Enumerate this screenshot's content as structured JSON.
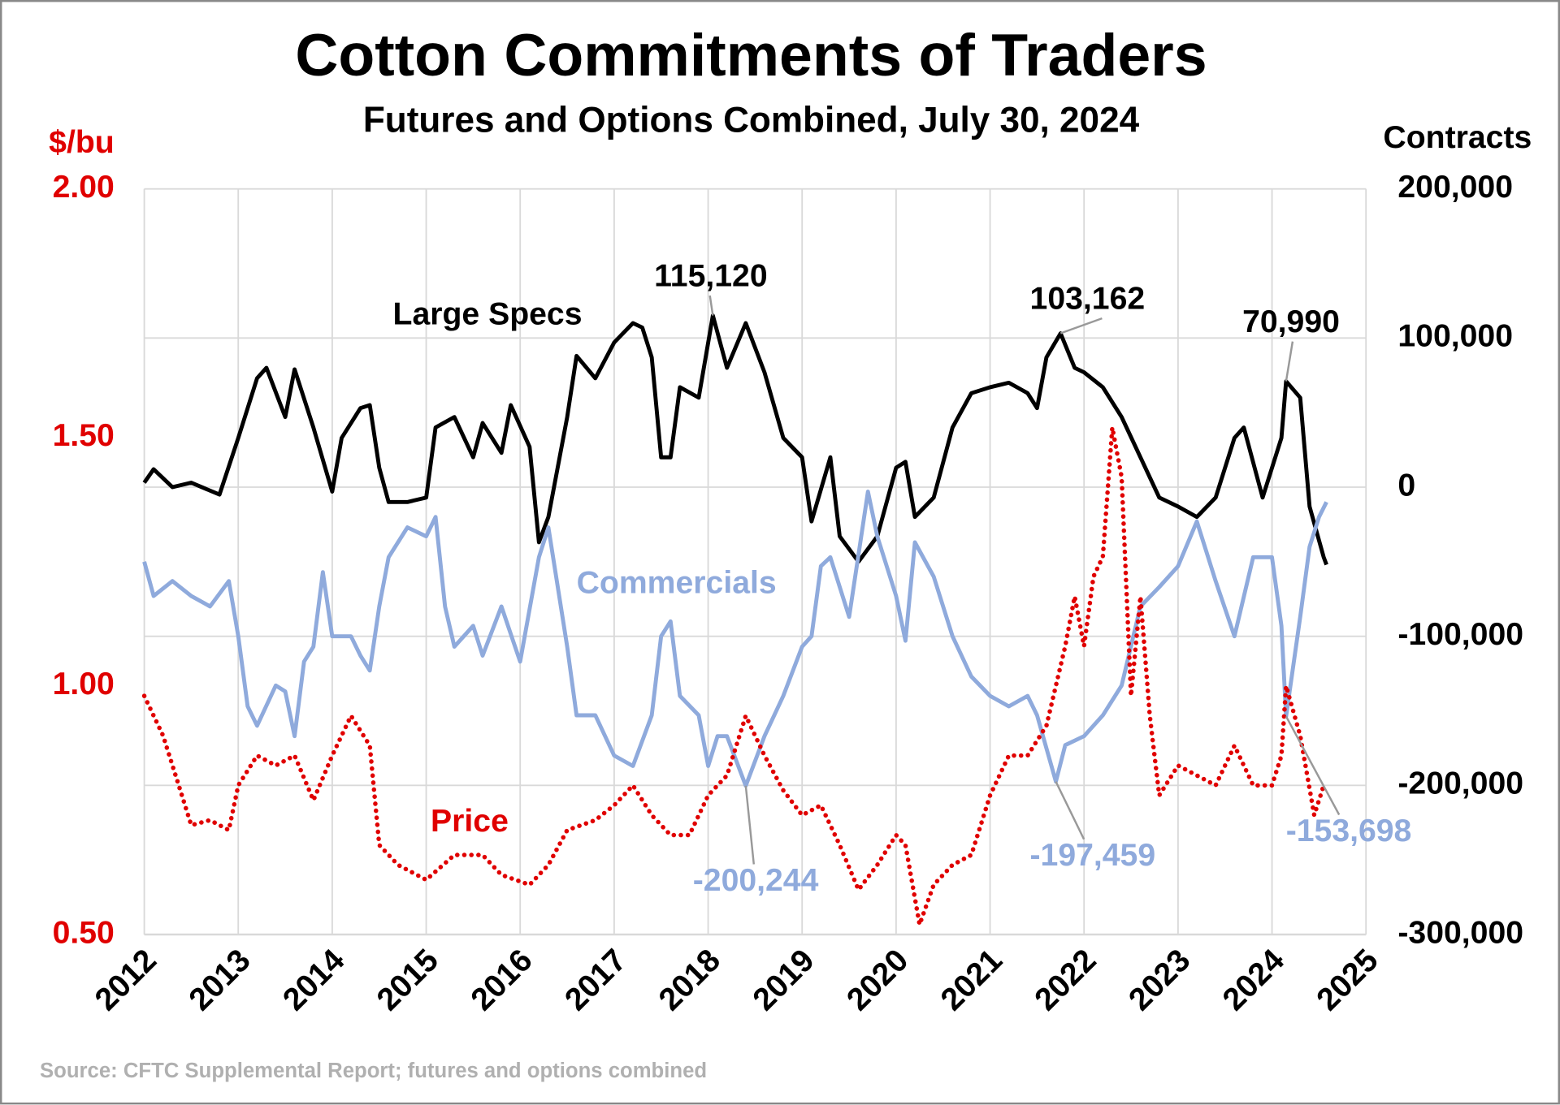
{
  "chart_data": {
    "type": "line",
    "title": "Cotton Commitments of Traders",
    "subtitle": "Futures and Options Combined, July 30, 2024",
    "y_label": "$/bu",
    "y2_label": "Contracts",
    "source": "Source: CFTC Supplemental Report; futures and options combined",
    "xlim": [
      2012,
      2025
    ],
    "xticks": [
      2012,
      2013,
      2014,
      2015,
      2016,
      2017,
      2018,
      2019,
      2020,
      2021,
      2022,
      2023,
      2024,
      2025
    ],
    "ylim": [
      0.5,
      2.0
    ],
    "yticks": [
      {
        "value": 0.5,
        "label": "0.50"
      },
      {
        "value": 1.0,
        "label": "1.00"
      },
      {
        "value": 1.5,
        "label": "1.50"
      },
      {
        "value": 2.0,
        "label": "2.00"
      }
    ],
    "y_color": "#e00000",
    "y2lim": [
      -300000,
      200000
    ],
    "y2ticks": [
      {
        "value": 200000,
        "label": "200,000"
      },
      {
        "value": 100000,
        "label": "100,000"
      },
      0,
      {
        "value": -100000,
        "label": "-100,000"
      },
      {
        "value": -200000,
        "label": "-200,000"
      },
      {
        "value": -300000,
        "label": "-300,000"
      }
    ],
    "grid": true,
    "series": [
      {
        "name": "Large Specs",
        "color": "#000000",
        "axis": "y2",
        "dash": "solid",
        "x": [
          2012.0,
          2012.1,
          2012.3,
          2012.5,
          2012.8,
          2013.0,
          2013.2,
          2013.3,
          2013.5,
          2013.6,
          2013.8,
          2014.0,
          2014.1,
          2014.3,
          2014.4,
          2014.5,
          2014.6,
          2014.8,
          2015.0,
          2015.1,
          2015.3,
          2015.5,
          2015.6,
          2015.8,
          2015.9,
          2016.1,
          2016.2,
          2016.3,
          2016.5,
          2016.6,
          2016.8,
          2017.0,
          2017.2,
          2017.3,
          2017.4,
          2017.5,
          2017.6,
          2017.7,
          2017.9,
          2018.05,
          2018.2,
          2018.4,
          2018.6,
          2018.8,
          2019.0,
          2019.1,
          2019.3,
          2019.4,
          2019.6,
          2019.8,
          2020.0,
          2020.1,
          2020.2,
          2020.4,
          2020.6,
          2020.8,
          2021.0,
          2021.2,
          2021.4,
          2021.5,
          2021.6,
          2021.75,
          2021.9,
          2022.0,
          2022.2,
          2022.4,
          2022.6,
          2022.8,
          2023.0,
          2023.2,
          2023.4,
          2023.6,
          2023.7,
          2023.9,
          2024.1,
          2024.15,
          2024.3,
          2024.4,
          2024.55,
          2024.58
        ],
        "values": [
          3000,
          12000,
          0,
          3000,
          -5000,
          33000,
          73000,
          80000,
          47000,
          79000,
          40000,
          -3000,
          33000,
          53000,
          55000,
          13000,
          -10000,
          -10000,
          -7000,
          40000,
          47000,
          20000,
          43000,
          23000,
          55000,
          27000,
          -37000,
          -20000,
          47000,
          88000,
          73000,
          97000,
          110000,
          107000,
          87000,
          20000,
          20000,
          67000,
          60000,
          115120,
          80000,
          110000,
          77000,
          33000,
          20000,
          -23000,
          20000,
          -33000,
          -50000,
          -33000,
          13000,
          17000,
          -20000,
          -7000,
          40000,
          63000,
          67000,
          70000,
          63000,
          53000,
          87000,
          103162,
          80000,
          77000,
          67000,
          47000,
          20000,
          -7000,
          -13000,
          -20000,
          -7000,
          33000,
          40000,
          -7000,
          33000,
          70990,
          60000,
          -13000,
          -47000,
          -52000
        ]
      },
      {
        "name": "Commercials",
        "color": "#8faadc",
        "axis": "y2",
        "dash": "solid",
        "x": [
          2012.0,
          2012.1,
          2012.3,
          2012.5,
          2012.7,
          2012.9,
          2013.0,
          2013.1,
          2013.2,
          2013.4,
          2013.5,
          2013.6,
          2013.7,
          2013.8,
          2013.9,
          2014.0,
          2014.2,
          2014.3,
          2014.4,
          2014.5,
          2014.6,
          2014.8,
          2015.0,
          2015.1,
          2015.2,
          2015.3,
          2015.5,
          2015.6,
          2015.8,
          2016.0,
          2016.2,
          2016.3,
          2016.5,
          2016.6,
          2016.8,
          2017.0,
          2017.2,
          2017.4,
          2017.5,
          2017.6,
          2017.7,
          2017.9,
          2018.0,
          2018.1,
          2018.2,
          2018.4,
          2018.6,
          2018.8,
          2019.0,
          2019.1,
          2019.2,
          2019.3,
          2019.5,
          2019.7,
          2019.8,
          2020.0,
          2020.1,
          2020.2,
          2020.4,
          2020.6,
          2020.8,
          2021.0,
          2021.2,
          2021.4,
          2021.5,
          2021.7,
          2021.8,
          2022.0,
          2022.2,
          2022.4,
          2022.6,
          2022.8,
          2023.0,
          2023.2,
          2023.4,
          2023.6,
          2023.8,
          2024.0,
          2024.1,
          2024.15,
          2024.3,
          2024.4,
          2024.5,
          2024.58
        ],
        "values": [
          -50000,
          -73000,
          -63000,
          -73000,
          -80000,
          -63000,
          -100000,
          -147000,
          -160000,
          -133000,
          -137000,
          -167000,
          -117000,
          -107000,
          -57000,
          -100000,
          -100000,
          -113000,
          -123000,
          -80000,
          -47000,
          -27000,
          -33000,
          -20000,
          -80000,
          -107000,
          -93000,
          -113000,
          -80000,
          -117000,
          -47000,
          -27000,
          -107000,
          -153000,
          -153000,
          -180000,
          -187000,
          -153000,
          -100000,
          -90000,
          -140000,
          -153000,
          -187000,
          -167000,
          -167000,
          -200244,
          -167000,
          -140000,
          -107000,
          -100000,
          -53000,
          -47000,
          -87000,
          -3000,
          -33000,
          -73000,
          -103000,
          -37000,
          -60000,
          -100000,
          -127000,
          -140000,
          -147000,
          -140000,
          -153000,
          -197459,
          -173000,
          -167000,
          -153000,
          -133000,
          -80000,
          -67000,
          -53000,
          -23000,
          -63000,
          -100000,
          -47000,
          -47000,
          -93000,
          -153698,
          -87000,
          -40000,
          -20000,
          -10000
        ]
      },
      {
        "name": "Price",
        "color": "#e00000",
        "axis": "y",
        "dash": "dotted",
        "x": [
          2012.0,
          2012.2,
          2012.4,
          2012.5,
          2012.7,
          2012.9,
          2013.0,
          2013.2,
          2013.4,
          2013.6,
          2013.8,
          2014.0,
          2014.2,
          2014.4,
          2014.5,
          2014.7,
          2015.0,
          2015.3,
          2015.6,
          2015.8,
          2016.1,
          2016.3,
          2016.5,
          2016.8,
          2017.0,
          2017.2,
          2017.4,
          2017.6,
          2017.8,
          2018.0,
          2018.2,
          2018.4,
          2018.6,
          2018.8,
          2019.0,
          2019.2,
          2019.4,
          2019.6,
          2019.8,
          2020.0,
          2020.1,
          2020.25,
          2020.4,
          2020.6,
          2020.8,
          2021.0,
          2021.2,
          2021.4,
          2021.6,
          2021.8,
          2021.9,
          2022.0,
          2022.1,
          2022.2,
          2022.3,
          2022.4,
          2022.5,
          2022.6,
          2022.7,
          2022.8,
          2023.0,
          2023.2,
          2023.4,
          2023.6,
          2023.8,
          2024.0,
          2024.1,
          2024.15,
          2024.3,
          2024.45,
          2024.55
        ],
        "values": [
          0.98,
          0.9,
          0.78,
          0.72,
          0.73,
          0.71,
          0.8,
          0.86,
          0.84,
          0.86,
          0.77,
          0.86,
          0.94,
          0.88,
          0.68,
          0.64,
          0.61,
          0.66,
          0.66,
          0.62,
          0.6,
          0.64,
          0.71,
          0.73,
          0.76,
          0.8,
          0.74,
          0.7,
          0.7,
          0.78,
          0.82,
          0.94,
          0.86,
          0.79,
          0.74,
          0.76,
          0.68,
          0.59,
          0.64,
          0.7,
          0.68,
          0.52,
          0.6,
          0.64,
          0.66,
          0.78,
          0.86,
          0.86,
          0.92,
          1.08,
          1.18,
          1.08,
          1.22,
          1.26,
          1.52,
          1.42,
          0.98,
          1.18,
          0.94,
          0.78,
          0.84,
          0.82,
          0.8,
          0.88,
          0.8,
          0.8,
          0.86,
          1.0,
          0.9,
          0.74,
          0.8
        ]
      }
    ],
    "annotations": [
      {
        "text": "115,120",
        "x": 2018.05,
        "value": 115120,
        "color": "#000000"
      },
      {
        "text": "103,162",
        "x": 2021.75,
        "value": 103162,
        "color": "#000000"
      },
      {
        "text": "70,990",
        "x": 2024.15,
        "value": 70990,
        "color": "#000000"
      },
      {
        "text": "-200,244",
        "x": 2018.4,
        "value": -200244,
        "color": "#8faadc"
      },
      {
        "text": "-197,459",
        "x": 2021.7,
        "value": -197459,
        "color": "#8faadc"
      },
      {
        "text": "-153,698",
        "x": 2024.15,
        "value": -153698,
        "color": "#8faadc"
      }
    ]
  }
}
